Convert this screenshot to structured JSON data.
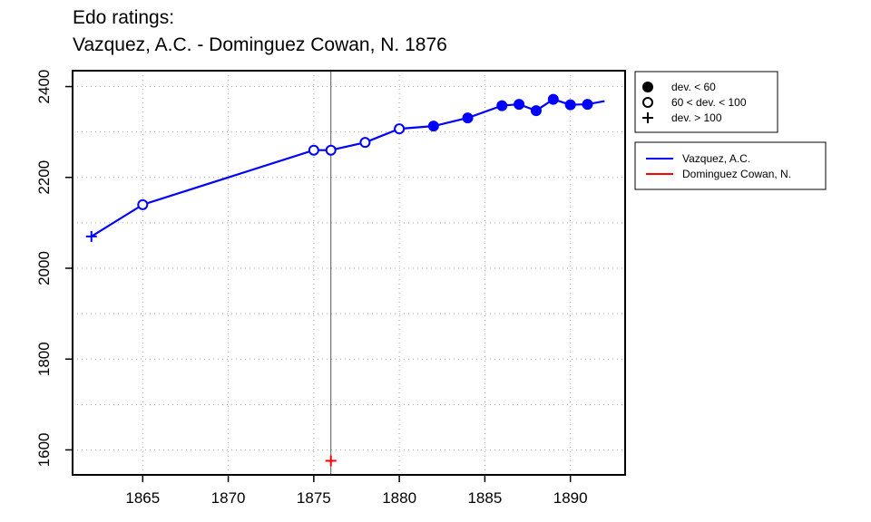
{
  "title_line1": "Edo ratings:",
  "title_line2": "Vazquez, A.C. - Dominguez Cowan, N. 1876",
  "chart_data": {
    "type": "line",
    "title": "Edo ratings:\nVazquez, A.C. - Dominguez Cowan, N. 1876",
    "xlabel": "",
    "ylabel": "",
    "xlim": [
      1860.9,
      1893.2
    ],
    "ylim": [
      1545,
      2435
    ],
    "x_ticks": [
      1865,
      1870,
      1875,
      1880,
      1885,
      1890
    ],
    "y_ticks": [
      1600,
      1800,
      2000,
      2200,
      2400
    ],
    "grid": true,
    "event_line_x": 1876,
    "marker_legend": [
      {
        "symbol": "filled-circle",
        "label": "dev. < 60"
      },
      {
        "symbol": "open-circle",
        "label": "60 < dev. < 100"
      },
      {
        "symbol": "plus",
        "label": "dev. > 100"
      }
    ],
    "series": [
      {
        "name": "Vazquez, A.C.",
        "color": "#0000ff",
        "points": [
          {
            "x": 1862,
            "y": 2070,
            "marker": "plus"
          },
          {
            "x": 1865,
            "y": 2140,
            "marker": "open-circle"
          },
          {
            "x": 1875,
            "y": 2260,
            "marker": "open-circle"
          },
          {
            "x": 1876,
            "y": 2260,
            "marker": "open-circle"
          },
          {
            "x": 1878,
            "y": 2277,
            "marker": "open-circle"
          },
          {
            "x": 1880,
            "y": 2307,
            "marker": "open-circle"
          },
          {
            "x": 1882,
            "y": 2313,
            "marker": "filled-circle"
          },
          {
            "x": 1884,
            "y": 2331,
            "marker": "filled-circle"
          },
          {
            "x": 1886,
            "y": 2358,
            "marker": "filled-circle"
          },
          {
            "x": 1887,
            "y": 2361,
            "marker": "filled-circle"
          },
          {
            "x": 1888,
            "y": 2347,
            "marker": "filled-circle"
          },
          {
            "x": 1889,
            "y": 2372,
            "marker": "filled-circle"
          },
          {
            "x": 1890,
            "y": 2360,
            "marker": "filled-circle"
          },
          {
            "x": 1891,
            "y": 2361,
            "marker": "filled-circle"
          },
          {
            "x": 1892,
            "y": 2368,
            "marker": "none"
          }
        ]
      },
      {
        "name": "Dominguez Cowan, N.",
        "color": "#ff0000",
        "points": [
          {
            "x": 1876,
            "y": 1576,
            "marker": "plus"
          }
        ]
      }
    ]
  }
}
